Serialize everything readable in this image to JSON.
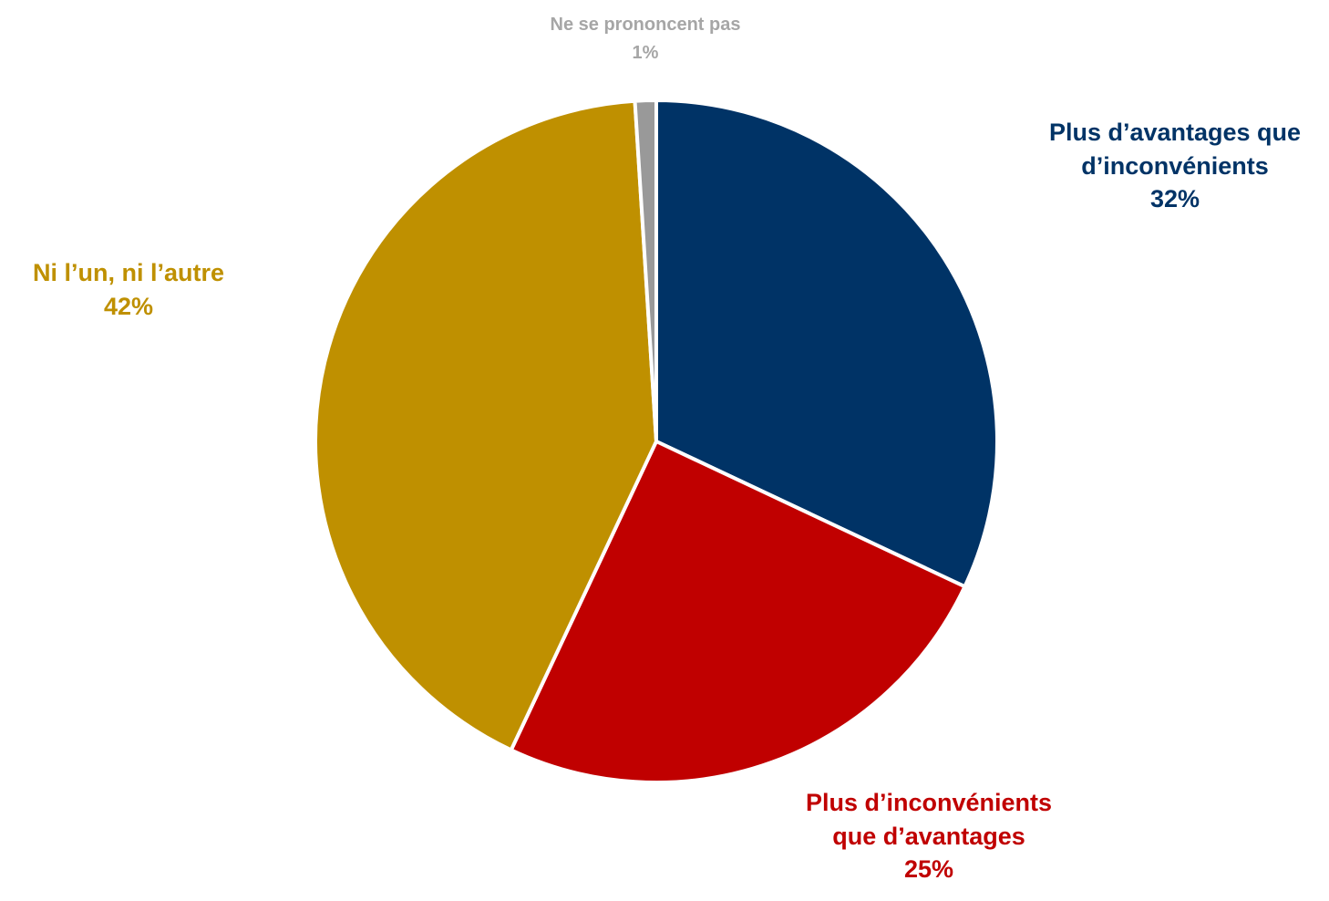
{
  "chart_data": {
    "type": "pie",
    "slices": [
      {
        "label_lines": [
          "Plus d’avantages que",
          "d’inconvénients"
        ],
        "value": 32,
        "value_label": "32%",
        "color": "#003366"
      },
      {
        "label_lines": [
          "Plus d’inconvénients",
          "que d’avantages"
        ],
        "value": 25,
        "value_label": "25%",
        "color": "#C00000"
      },
      {
        "label_lines": [
          "Ni l’un, ni l’autre"
        ],
        "value": 42,
        "value_label": "42%",
        "color": "#BF9000"
      },
      {
        "label_lines": [
          "Ne se prononcent pas"
        ],
        "value": 1,
        "value_label": "1%",
        "color": "#999999",
        "label_color": "#A6A6A6"
      }
    ],
    "start_angle": "12 o'clock",
    "direction": "clockwise",
    "legend": "none"
  }
}
